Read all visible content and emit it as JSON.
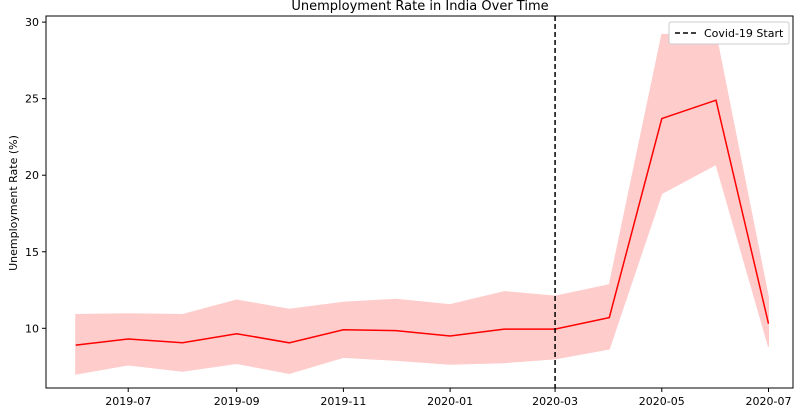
{
  "chart_data": {
    "type": "line",
    "title": "Unemployment Rate in India Over Time",
    "xlabel": "",
    "ylabel": "Unemployment Rate (%)",
    "x": [
      "2019-06-01",
      "2019-07-01",
      "2019-08-01",
      "2019-09-01",
      "2019-10-01",
      "2019-11-01",
      "2019-12-01",
      "2020-01-01",
      "2020-02-01",
      "2020-03-01",
      "2020-04-01",
      "2020-05-01",
      "2020-06-01",
      "2020-07-01"
    ],
    "series": [
      {
        "values": [
          8.9,
          9.3,
          9.05,
          9.65,
          9.05,
          9.9,
          9.85,
          9.5,
          9.95,
          9.95,
          10.7,
          23.7,
          24.9,
          10.3
        ],
        "upper": [
          10.9,
          10.95,
          10.9,
          11.85,
          11.25,
          11.7,
          11.9,
          11.55,
          12.4,
          12.1,
          12.85,
          29.2,
          29.2,
          12.0
        ],
        "lower": [
          7.0,
          7.6,
          7.2,
          7.7,
          7.05,
          8.1,
          7.9,
          7.65,
          7.75,
          8.0,
          8.65,
          18.8,
          20.7,
          8.8
        ],
        "color": "#ff0000",
        "band_color": "#ffcccc"
      }
    ],
    "vline": {
      "x": "2020-03-01",
      "label": "Covid-19 Start",
      "color": "#000000"
    },
    "xticks": [
      "2019-07",
      "2019-09",
      "2019-11",
      "2020-01",
      "2020-03",
      "2020-05",
      "2020-07"
    ],
    "yticks": [
      10,
      15,
      20,
      25,
      30
    ],
    "xlim": [
      "2019-05-15",
      "2020-07-15"
    ],
    "ylim": [
      6.1,
      30.4
    ],
    "legend": {
      "position": "top-right"
    },
    "grid": false
  }
}
